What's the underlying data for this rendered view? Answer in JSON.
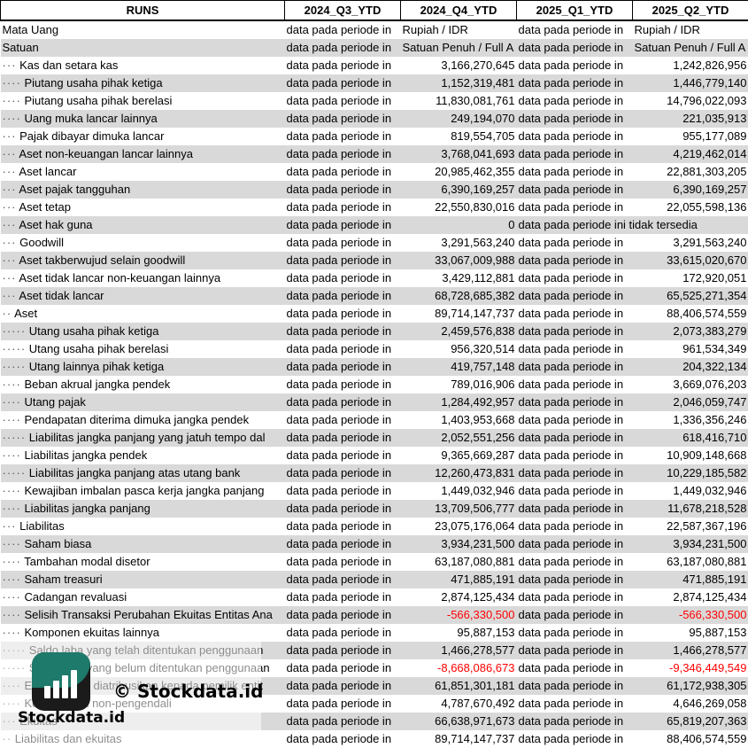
{
  "header": [
    "RUNS",
    "2024_Q3_YTD",
    "2024_Q4_YTD",
    "2025_Q1_YTD",
    "2025_Q2_YTD"
  ],
  "na_text": "data pada periode in",
  "na_full": "data pada periode ini tidak tersedia",
  "rows": [
    {
      "dots": "",
      "label": "Mata Uang",
      "q3": "data pada periode in",
      "q4": "Rupiah / IDR",
      "q1": "data pada periode in",
      "q2": "Rupiah / IDR"
    },
    {
      "dots": "",
      "label": "Satuan",
      "q3": "data pada periode in",
      "q4": "Satuan Penuh / Full A",
      "q1": "data pada periode in",
      "q2": "Satuan Penuh / Full A"
    },
    {
      "dots": "···",
      "label": "Kas dan setara kas",
      "q3": "data pada periode in",
      "q4": "3,166,270,645",
      "q1": "data pada periode in",
      "q2": "1,242,826,956"
    },
    {
      "dots": "····",
      "label": "Piutang usaha pihak ketiga",
      "q3": "data pada periode in",
      "q4": "1,152,319,481",
      "q1": "data pada periode in",
      "q2": "1,446,779,140"
    },
    {
      "dots": "····",
      "label": "Piutang usaha pihak berelasi",
      "q3": "data pada periode in",
      "q4": "11,830,081,761",
      "q1": "data pada periode in",
      "q2": "14,796,022,093"
    },
    {
      "dots": "····",
      "label": "Uang muka lancar lainnya",
      "q3": "data pada periode in",
      "q4": "249,194,070",
      "q1": "data pada periode in",
      "q2": "221,035,913"
    },
    {
      "dots": "···",
      "label": "Pajak dibayar dimuka lancar",
      "q3": "data pada periode in",
      "q4": "819,554,705",
      "q1": "data pada periode in",
      "q2": "955,177,089"
    },
    {
      "dots": "···",
      "label": "Aset non-keuangan lancar lainnya",
      "q3": "data pada periode in",
      "q4": "3,768,041,693",
      "q1": "data pada periode in",
      "q2": "4,219,462,014"
    },
    {
      "dots": "···",
      "label": "Aset lancar",
      "q3": "data pada periode in",
      "q4": "20,985,462,355",
      "q1": "data pada periode in",
      "q2": "22,881,303,205"
    },
    {
      "dots": "···",
      "label": "Aset pajak tangguhan",
      "q3": "data pada periode in",
      "q4": "6,390,169,257",
      "q1": "data pada periode in",
      "q2": "6,390,169,257"
    },
    {
      "dots": "···",
      "label": "Aset tetap",
      "q3": "data pada periode in",
      "q4": "22,550,830,016",
      "q1": "data pada periode in",
      "q2": "22,055,598,136"
    },
    {
      "dots": "···",
      "label": "Aset hak guna",
      "q3": "data pada periode in",
      "q4": "0",
      "q1": "data pada periode ini tidak tersedia",
      "q2": "",
      "span": true
    },
    {
      "dots": "···",
      "label": "Goodwill",
      "q3": "data pada periode in",
      "q4": "3,291,563,240",
      "q1": "data pada periode in",
      "q2": "3,291,563,240"
    },
    {
      "dots": "···",
      "label": "Aset takberwujud selain goodwill",
      "q3": "data pada periode in",
      "q4": "33,067,009,988",
      "q1": "data pada periode in",
      "q2": "33,615,020,670"
    },
    {
      "dots": "···",
      "label": "Aset tidak lancar non-keuangan lainnya",
      "q3": "data pada periode in",
      "q4": "3,429,112,881",
      "q1": "data pada periode in",
      "q2": "172,920,051"
    },
    {
      "dots": "···",
      "label": "Aset tidak lancar",
      "q3": "data pada periode in",
      "q4": "68,728,685,382",
      "q1": "data pada periode in",
      "q2": "65,525,271,354"
    },
    {
      "dots": "··",
      "label": "Aset",
      "q3": "data pada periode in",
      "q4": "89,714,147,737",
      "q1": "data pada periode in",
      "q2": "88,406,574,559"
    },
    {
      "dots": "·····",
      "label": "Utang usaha pihak ketiga",
      "q3": "data pada periode in",
      "q4": "2,459,576,838",
      "q1": "data pada periode in",
      "q2": "2,073,383,279"
    },
    {
      "dots": "·····",
      "label": "Utang usaha pihak berelasi",
      "q3": "data pada periode in",
      "q4": "956,320,514",
      "q1": "data pada periode in",
      "q2": "961,534,349"
    },
    {
      "dots": "·····",
      "label": "Utang lainnya pihak ketiga",
      "q3": "data pada periode in",
      "q4": "419,757,148",
      "q1": "data pada periode in",
      "q2": "204,322,134"
    },
    {
      "dots": "····",
      "label": "Beban akrual jangka pendek",
      "q3": "data pada periode in",
      "q4": "789,016,906",
      "q1": "data pada periode in",
      "q2": "3,669,076,203"
    },
    {
      "dots": "····",
      "label": "Utang pajak",
      "q3": "data pada periode in",
      "q4": "1,284,492,957",
      "q1": "data pada periode in",
      "q2": "2,046,059,747"
    },
    {
      "dots": "····",
      "label": "Pendapatan diterima dimuka jangka pendek",
      "q3": "data pada periode in",
      "q4": "1,403,953,668",
      "q1": "data pada periode in",
      "q2": "1,336,356,246"
    },
    {
      "dots": "·····",
      "label": "Liabilitas jangka panjang yang jatuh tempo dal",
      "q3": "data pada periode in",
      "q4": "2,052,551,256",
      "q1": "data pada periode in",
      "q2": "618,416,710"
    },
    {
      "dots": "····",
      "label": "Liabilitas jangka pendek",
      "q3": "data pada periode in",
      "q4": "9,365,669,287",
      "q1": "data pada periode in",
      "q2": "10,909,148,668"
    },
    {
      "dots": "·····",
      "label": "Liabilitas jangka panjang atas utang bank",
      "q3": "data pada periode in",
      "q4": "12,260,473,831",
      "q1": "data pada periode in",
      "q2": "10,229,185,582"
    },
    {
      "dots": "····",
      "label": "Kewajiban imbalan pasca kerja jangka panjang",
      "q3": "data pada periode in",
      "q4": "1,449,032,946",
      "q1": "data pada periode in",
      "q2": "1,449,032,946"
    },
    {
      "dots": "····",
      "label": "Liabilitas jangka panjang",
      "q3": "data pada periode in",
      "q4": "13,709,506,777",
      "q1": "data pada periode in",
      "q2": "11,678,218,528"
    },
    {
      "dots": "···",
      "label": "Liabilitas",
      "q3": "data pada periode in",
      "q4": "23,075,176,064",
      "q1": "data pada periode in",
      "q2": "22,587,367,196"
    },
    {
      "dots": "····",
      "label": "Saham biasa",
      "q3": "data pada periode in",
      "q4": "3,934,231,500",
      "q1": "data pada periode in",
      "q2": "3,934,231,500"
    },
    {
      "dots": "····",
      "label": "Tambahan modal disetor",
      "q3": "data pada periode in",
      "q4": "63,187,080,881",
      "q1": "data pada periode in",
      "q2": "63,187,080,881"
    },
    {
      "dots": "····",
      "label": "Saham treasuri",
      "q3": "data pada periode in",
      "q4": "471,885,191",
      "q1": "data pada periode in",
      "q2": "471,885,191"
    },
    {
      "dots": "····",
      "label": "Cadangan revaluasi",
      "q3": "data pada periode in",
      "q4": "2,874,125,434",
      "q1": "data pada periode in",
      "q2": "2,874,125,434"
    },
    {
      "dots": "····",
      "label": "Selisih Transaksi Perubahan Ekuitas Entitas Ana",
      "q3": "data pada periode in",
      "q4": "-566,330,500",
      "q1": "data pada periode in",
      "q2": "-566,330,500",
      "neg": true
    },
    {
      "dots": "····",
      "label": "Komponen ekuitas lainnya",
      "q3": "data pada periode in",
      "q4": "95,887,153",
      "q1": "data pada periode in",
      "q2": "95,887,153"
    },
    {
      "dots": "·····",
      "label": "Saldo laba yang telah ditentukan penggunaan",
      "q3": "data pada periode in",
      "q4": "1,466,278,577",
      "q1": "data pada periode in",
      "q2": "1,466,278,577"
    },
    {
      "dots": "·····",
      "label": "Saldo laba yang belum ditentukan penggunaan",
      "q3": "data pada periode in",
      "q4": "-8,668,086,673",
      "q1": "data pada periode in",
      "q2": "-9,346,449,549",
      "neg": true
    },
    {
      "dots": "····",
      "label": "Ekuitas yang diatribusikan kepada pemilik entit",
      "q3": "data pada periode in",
      "q4": "61,851,301,181",
      "q1": "data pada periode in",
      "q2": "61,172,938,305"
    },
    {
      "dots": "····",
      "label": "Kepentingan non-pengendali",
      "q3": "data pada periode in",
      "q4": "4,787,670,492",
      "q1": "data pada periode in",
      "q2": "4,646,269,058"
    },
    {
      "dots": "···",
      "label": "Ekuitas",
      "q3": "data pada periode in",
      "q4": "66,638,971,673",
      "q1": "data pada periode in",
      "q2": "65,819,207,363"
    },
    {
      "dots": "··",
      "label": "Liabilitas dan ekuitas",
      "q3": "data pada periode in",
      "q4": "89,714,147,737",
      "q1": "data pada periode in",
      "q2": "88,406,574,559"
    }
  ],
  "watermark": {
    "copyright": "© Stockdata.id",
    "brand": "Stockdata.id",
    "logo_colors": {
      "top": "#1e7a6a",
      "bottom": "#1b1b1b"
    }
  },
  "colors": {
    "stripe": "#d9d9d9",
    "negative": "#ff0000"
  }
}
